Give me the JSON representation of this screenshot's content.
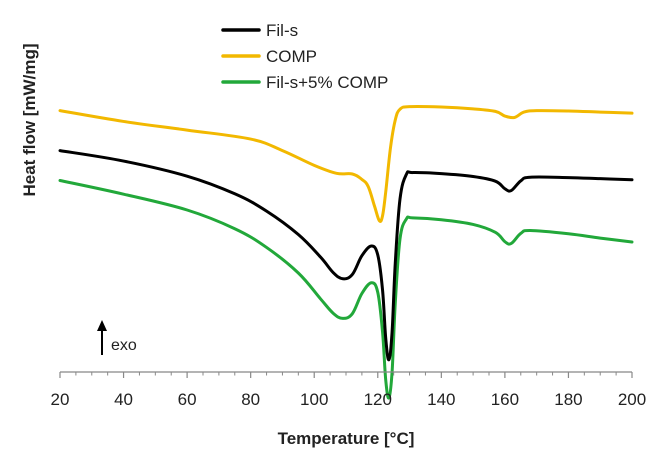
{
  "chart_data": {
    "type": "line",
    "title": "",
    "xlabel": "Temperature [°C]",
    "ylabel": "Heat flow [mW/mg]",
    "xlim": [
      20,
      200
    ],
    "xticks": [
      20,
      40,
      60,
      80,
      100,
      120,
      140,
      160,
      180,
      200
    ],
    "ylim": [
      0,
      100
    ],
    "y_tick_labels": "none",
    "grid": false,
    "legend_position": "top-center",
    "annotation": "exo",
    "series": [
      {
        "name": "Fil-s",
        "color": "#000000",
        "points": [
          [
            20,
            61.5
          ],
          [
            40,
            58.6
          ],
          [
            60,
            54.4
          ],
          [
            75,
            49.5
          ],
          [
            85,
            44.7
          ],
          [
            95,
            38.2
          ],
          [
            102,
            31.9
          ],
          [
            106,
            27.6
          ],
          [
            109,
            25.9
          ],
          [
            112,
            27.1
          ],
          [
            115,
            32.3
          ],
          [
            118,
            35.0
          ],
          [
            120,
            32.5
          ],
          [
            121.5,
            22.8
          ],
          [
            122.5,
            9.4
          ],
          [
            123.5,
            3.4
          ],
          [
            124.5,
            11.1
          ],
          [
            125.5,
            30.2
          ],
          [
            127,
            48.1
          ],
          [
            129,
            54.9
          ],
          [
            131,
            55.4
          ],
          [
            140,
            55.1
          ],
          [
            150,
            54.3
          ],
          [
            157,
            53.0
          ],
          [
            160,
            50.9
          ],
          [
            162,
            50.4
          ],
          [
            165,
            53.1
          ],
          [
            168,
            54.1
          ],
          [
            180,
            54.0
          ],
          [
            190,
            53.7
          ],
          [
            200,
            53.4
          ]
        ]
      },
      {
        "name": "COMP",
        "color": "#F2B800",
        "points": [
          [
            20,
            72.6
          ],
          [
            40,
            69.6
          ],
          [
            60,
            67.2
          ],
          [
            80,
            64.7
          ],
          [
            90,
            61.5
          ],
          [
            100,
            57.4
          ],
          [
            107,
            55.2
          ],
          [
            112,
            55.0
          ],
          [
            115,
            53.5
          ],
          [
            117,
            51.5
          ],
          [
            119,
            46.0
          ],
          [
            120.5,
            42.0
          ],
          [
            121.5,
            43.4
          ],
          [
            122.5,
            50.0
          ],
          [
            124,
            62.3
          ],
          [
            125.5,
            70.0
          ],
          [
            127,
            73.0
          ],
          [
            130,
            73.7
          ],
          [
            140,
            73.6
          ],
          [
            150,
            73.1
          ],
          [
            157,
            72.4
          ],
          [
            160,
            71.1
          ],
          [
            163,
            70.7
          ],
          [
            166,
            72.2
          ],
          [
            170,
            72.6
          ],
          [
            180,
            72.5
          ],
          [
            190,
            72.2
          ],
          [
            200,
            71.9
          ]
        ]
      },
      {
        "name": "Fil-s+5% COMP",
        "color": "#22A83A",
        "points": [
          [
            20,
            53.2
          ],
          [
            40,
            49.4
          ],
          [
            60,
            45.0
          ],
          [
            75,
            39.8
          ],
          [
            85,
            34.6
          ],
          [
            95,
            27.5
          ],
          [
            102,
            20.3
          ],
          [
            106,
            16.3
          ],
          [
            109,
            14.9
          ],
          [
            112,
            16.2
          ],
          [
            115,
            21.8
          ],
          [
            118,
            24.8
          ],
          [
            120,
            22.1
          ],
          [
            121.5,
            11.1
          ],
          [
            122.5,
            -2.2
          ],
          [
            123.5,
            -7.2
          ],
          [
            124.5,
            0.0
          ],
          [
            125.5,
            19.1
          ],
          [
            127,
            37.0
          ],
          [
            129,
            42.5
          ],
          [
            131,
            42.8
          ],
          [
            140,
            42.3
          ],
          [
            150,
            41.0
          ],
          [
            157,
            38.8
          ],
          [
            160,
            36.2
          ],
          [
            162,
            35.7
          ],
          [
            165,
            38.5
          ],
          [
            168,
            39.3
          ],
          [
            180,
            38.4
          ],
          [
            190,
            37.2
          ],
          [
            200,
            36.1
          ]
        ]
      }
    ]
  }
}
